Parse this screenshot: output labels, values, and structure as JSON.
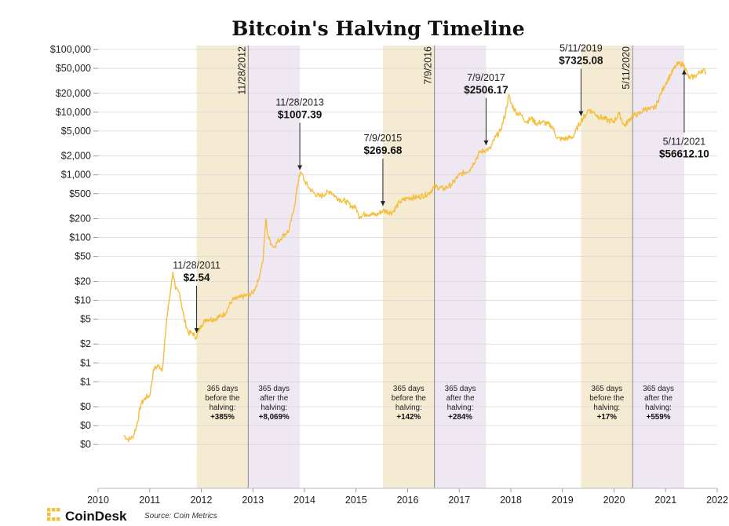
{
  "chart_data": {
    "type": "line",
    "title": "Bitcoin's Halving Timeline",
    "y_scale": "log",
    "ylim": [
      0.01,
      100000
    ],
    "xlim": [
      2010,
      2022
    ],
    "x_ticks": [
      "2010",
      "2011",
      "2012",
      "2013",
      "2014",
      "2015",
      "2016",
      "2017",
      "2018",
      "2019",
      "2020",
      "2021",
      "2022"
    ],
    "y_ticks": [
      {
        "label": "$100,000",
        "value": 100000
      },
      {
        "label": "$50,000",
        "value": 50000
      },
      {
        "label": "$20,000",
        "value": 20000
      },
      {
        "label": "$10,000",
        "value": 10000
      },
      {
        "label": "$5,000",
        "value": 5000
      },
      {
        "label": "$2,000",
        "value": 2000
      },
      {
        "label": "$1,000",
        "value": 1000
      },
      {
        "label": "$500",
        "value": 500
      },
      {
        "label": "$200",
        "value": 200
      },
      {
        "label": "$100",
        "value": 100
      },
      {
        "label": "$50",
        "value": 50
      },
      {
        "label": "$20",
        "value": 20
      },
      {
        "label": "$10",
        "value": 10
      },
      {
        "label": "$5",
        "value": 5
      },
      {
        "label": "$2",
        "value": 2
      },
      {
        "label": "$1",
        "value": 1
      },
      {
        "label": "$1",
        "value": 0.5
      },
      {
        "label": "$0",
        "value": 0.2
      },
      {
        "label": "$0",
        "value": 0.1
      },
      {
        "label": "$0",
        "value": 0.05
      }
    ],
    "grid": true,
    "line_color": "#F5BE3C",
    "series": [
      {
        "x": [
          2010.5,
          2010.58,
          2010.67,
          2010.75,
          2010.83,
          2010.92,
          2011.0,
          2011.08,
          2011.17,
          2011.25,
          2011.33,
          2011.42,
          2011.45,
          2011.5,
          2011.58,
          2011.67,
          2011.75,
          2011.83,
          2011.9,
          2012.0,
          2012.1,
          2012.25,
          2012.45,
          2012.6,
          2012.75,
          2012.9,
          2013.0,
          2013.1,
          2013.2,
          2013.25,
          2013.3,
          2013.4,
          2013.5,
          2013.6,
          2013.7,
          2013.8,
          2013.9,
          2013.95,
          2014.0,
          2014.1,
          2014.2,
          2014.3,
          2014.4,
          2014.5,
          2014.6,
          2014.7,
          2014.8,
          2014.9,
          2015.0,
          2015.05,
          2015.2,
          2015.4,
          2015.52,
          2015.7,
          2015.85,
          2016.0,
          2016.2,
          2016.4,
          2016.52,
          2016.7,
          2016.85,
          2017.0,
          2017.2,
          2017.4,
          2017.52,
          2017.6,
          2017.7,
          2017.8,
          2017.9,
          2017.96,
          2018.0,
          2018.1,
          2018.2,
          2018.3,
          2018.4,
          2018.5,
          2018.6,
          2018.8,
          2018.9,
          2019.0,
          2019.2,
          2019.36,
          2019.45,
          2019.5,
          2019.6,
          2019.7,
          2019.8,
          2019.9,
          2020.0,
          2020.1,
          2020.2,
          2020.36,
          2020.5,
          2020.6,
          2020.7,
          2020.8,
          2020.9,
          2021.0,
          2021.1,
          2021.2,
          2021.28,
          2021.36,
          2021.45,
          2021.55,
          2021.62,
          2021.7,
          2021.78
        ],
        "y": [
          0.07,
          0.06,
          0.065,
          0.1,
          0.22,
          0.28,
          0.3,
          0.8,
          0.9,
          0.8,
          5,
          18,
          28,
          15,
          13,
          5,
          3,
          3,
          2.54,
          4,
          5,
          5,
          6,
          10,
          11,
          12,
          13,
          20,
          45,
          200,
          100,
          70,
          90,
          110,
          130,
          300,
          1007.39,
          1050,
          800,
          600,
          500,
          450,
          500,
          550,
          450,
          400,
          380,
          320,
          300,
          220,
          240,
          230,
          269.68,
          250,
          370,
          430,
          440,
          500,
          650,
          600,
          700,
          1000,
          1200,
          2300,
          2506.17,
          2600,
          4000,
          5000,
          10000,
          19000,
          14000,
          10000,
          9000,
          7000,
          8000,
          6500,
          7000,
          6000,
          3800,
          3700,
          4000,
          7325.08,
          9000,
          11000,
          10000,
          8500,
          8000,
          7300,
          7200,
          9500,
          6000,
          8800,
          9500,
          11500,
          11000,
          12000,
          19000,
          29000,
          40000,
          55000,
          60000,
          56612.1,
          35000,
          37000,
          40000,
          47000,
          44000
        ]
      }
    ],
    "halvings": [
      {
        "label": "11/28/2012",
        "date": 2012.91
      },
      {
        "label": "7/9/2016",
        "date": 2016.52
      },
      {
        "label": "5/11/2020",
        "date": 2020.36
      }
    ],
    "bands": [
      {
        "from": 2011.91,
        "to": 2012.91,
        "color": "#F5EBD3",
        "lines": [
          "365 days",
          "before the",
          "halving:"
        ],
        "pct": "+385%"
      },
      {
        "from": 2012.91,
        "to": 2013.91,
        "color": "#EFE8F2",
        "lines": [
          "365 days",
          "after the",
          "halving:"
        ],
        "pct": "+8,069%"
      },
      {
        "from": 2015.52,
        "to": 2016.52,
        "color": "#F5EBD3",
        "lines": [
          "365 days",
          "before the",
          "halving:"
        ],
        "pct": "+142%"
      },
      {
        "from": 2016.52,
        "to": 2017.52,
        "color": "#EFE8F2",
        "lines": [
          "365 days",
          "after the",
          "halving:"
        ],
        "pct": "+284%"
      },
      {
        "from": 2019.36,
        "to": 2020.36,
        "color": "#F5EBD3",
        "lines": [
          "365 days",
          "before the",
          "halving:"
        ],
        "pct": "+17%"
      },
      {
        "from": 2020.36,
        "to": 2021.36,
        "color": "#EFE8F2",
        "lines": [
          "365 days",
          "after the",
          "halving:"
        ],
        "pct": "+559%"
      }
    ],
    "annotations": [
      {
        "date_label": "11/28/2011",
        "price_label": "$2.54",
        "x": 2011.91,
        "y": 2.54,
        "position": "above"
      },
      {
        "date_label": "11/28/2013",
        "price_label": "$1007.39",
        "x": 2013.91,
        "y": 1007.39,
        "position": "above"
      },
      {
        "date_label": "7/9/2015",
        "price_label": "$269.68",
        "x": 2015.52,
        "y": 269.68,
        "position": "above"
      },
      {
        "date_label": "7/9/2017",
        "price_label": "$2506.17",
        "x": 2017.52,
        "y": 2506.17,
        "position": "above"
      },
      {
        "date_label": "5/11/2019",
        "price_label": "$7325.08",
        "x": 2019.36,
        "y": 7325.08,
        "position": "above"
      },
      {
        "date_label": "5/11/2021",
        "price_label": "$56612.10",
        "x": 2021.36,
        "y": 56612.1,
        "position": "below"
      }
    ]
  },
  "footer": {
    "brand": "CoinDesk",
    "source": "Source: Coin Metrics",
    "brand_color": "#F5BE3C"
  }
}
